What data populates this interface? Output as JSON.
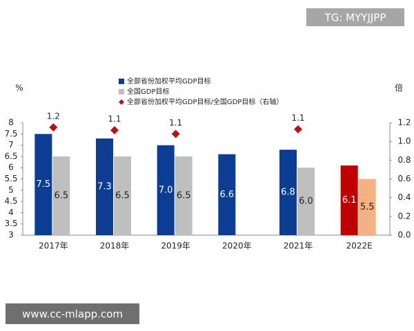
{
  "chart_data": {
    "type": "bar",
    "y_label": "%",
    "y2_label": "倍",
    "categories": [
      "2017年",
      "2018年",
      "2019年",
      "2020年",
      "2021年",
      "2022E"
    ],
    "series": [
      {
        "name": "全部省份加权平均GDP目标",
        "color": "#0b3e92",
        "colors": [
          "#0b3e92",
          "#0b3e92",
          "#0b3e92",
          "#0b3e92",
          "#0b3e92",
          "#c00000"
        ],
        "label_color": "#ffffff",
        "values": [
          7.5,
          7.3,
          7.0,
          6.6,
          6.8,
          6.1
        ],
        "value_labels": [
          "7.5",
          "7.3",
          "7.0",
          "6.6",
          "6.8",
          "6.1"
        ]
      },
      {
        "name": "全国GDP目标",
        "color": "#bfbfbf",
        "colors": [
          "#bfbfbf",
          "#bfbfbf",
          "#bfbfbf",
          "#bfbfbf",
          "#bfbfbf",
          "#f4b183"
        ],
        "label_color": "#222222",
        "values": [
          6.5,
          6.5,
          6.5,
          null,
          6.0,
          5.5
        ],
        "value_labels": [
          "6.5",
          "6.5",
          "6.5",
          null,
          "6.0",
          "5.5"
        ]
      },
      {
        "name": "全部省份加权平均GDP目标/全国GDP目标（右轴）",
        "color": "#b5121b",
        "axis": "y2",
        "marker": "diamond",
        "values": [
          1.15,
          1.12,
          1.08,
          null,
          1.13,
          null
        ],
        "value_labels": [
          "1.2",
          "1.1",
          "1.1",
          null,
          "1.1",
          null
        ]
      }
    ],
    "ylim": [
      3,
      8
    ],
    "yticks": [
      3,
      3.5,
      4,
      4.5,
      5,
      5.5,
      6,
      6.5,
      7,
      7.5,
      8
    ],
    "y2lim": [
      0,
      1.2
    ],
    "y2ticks": [
      {
        "value": 0,
        "label": "0.0"
      },
      0.2,
      0.4,
      0.6,
      0.8,
      {
        "value": 1,
        "label": "1.0"
      },
      1.2
    ],
    "grid": false
  },
  "watermarks": [
    "TG: MYYJJPP",
    "www.cc-mlapp.com"
  ]
}
